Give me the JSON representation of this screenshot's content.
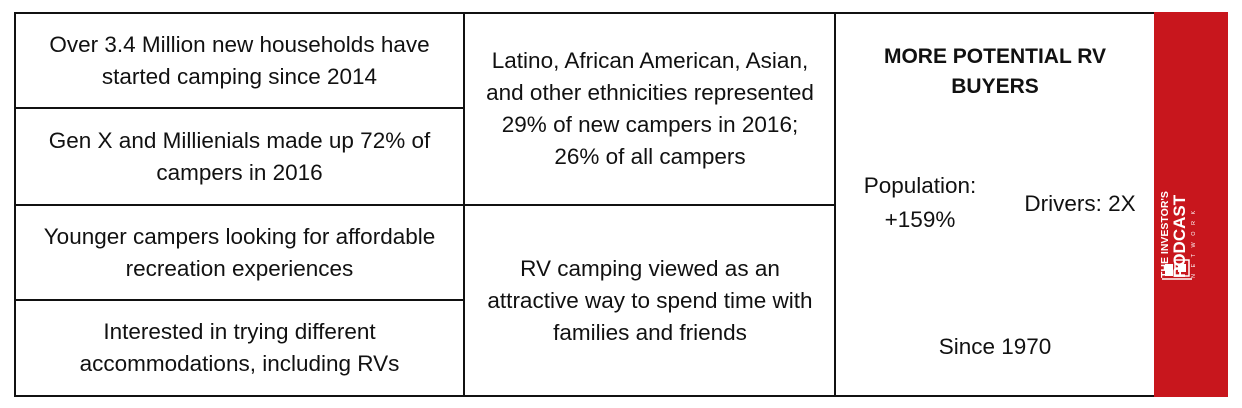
{
  "left_column": [
    "Over 3.4 Million new households have started camping since 2014",
    "Gen X and Millienials made up 72% of campers in 2016",
    "Younger campers looking for affordable recreation experiences",
    "Interested in trying different accommodations, including RVs"
  ],
  "middle_column": {
    "top": "Latino, African American, Asian, and other ethnicities represented 29% of new campers in 2016; 26% of all campers",
    "bottom": "RV camping viewed as an attractive way to spend time with families and friends"
  },
  "right_column": {
    "heading": "MORE POTENTIAL RV BUYERS",
    "population_label": "Population:",
    "population_value": "+159%",
    "drivers": "Drivers: 2X",
    "since": "Since 1970"
  },
  "brand": {
    "line1": "THE INVESTOR'S",
    "line2": "PODCAST",
    "line3": "NETWORK",
    "stripe_color": "#c8161d"
  }
}
